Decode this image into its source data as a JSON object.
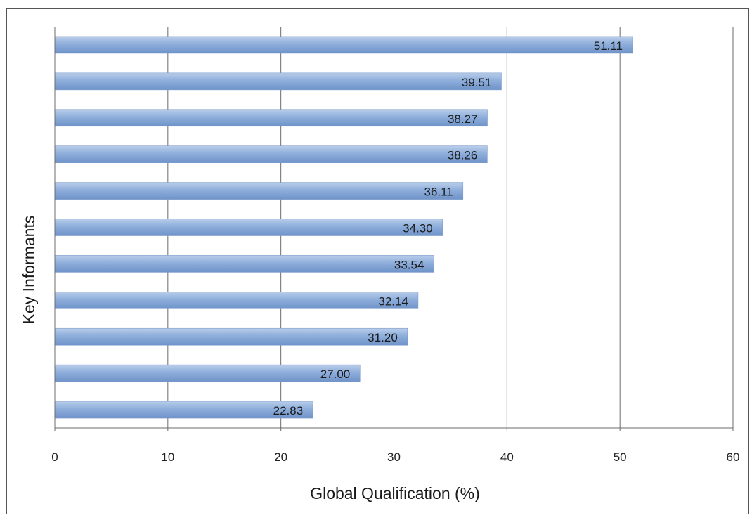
{
  "chart_data": {
    "type": "bar",
    "orientation": "horizontal",
    "title": "",
    "xlabel": "Global Qualification  (%)",
    "ylabel": "Key Informants",
    "xlim": [
      0,
      60
    ],
    "xticks": [
      "0",
      "10",
      "20",
      "30",
      "40",
      "50",
      "60"
    ],
    "grid": "vertical",
    "legend": "none",
    "bar_color": "#8eaedb",
    "values": [
      51.11,
      39.51,
      38.27,
      38.26,
      36.11,
      34.3,
      33.54,
      32.14,
      31.2,
      27.0,
      22.83
    ],
    "data_labels": [
      "51.11",
      "39.51",
      "38.27",
      "38.26",
      "36.11",
      "34.30",
      "33.54",
      "32.14",
      "31.20",
      "27.00",
      "22.83"
    ]
  }
}
